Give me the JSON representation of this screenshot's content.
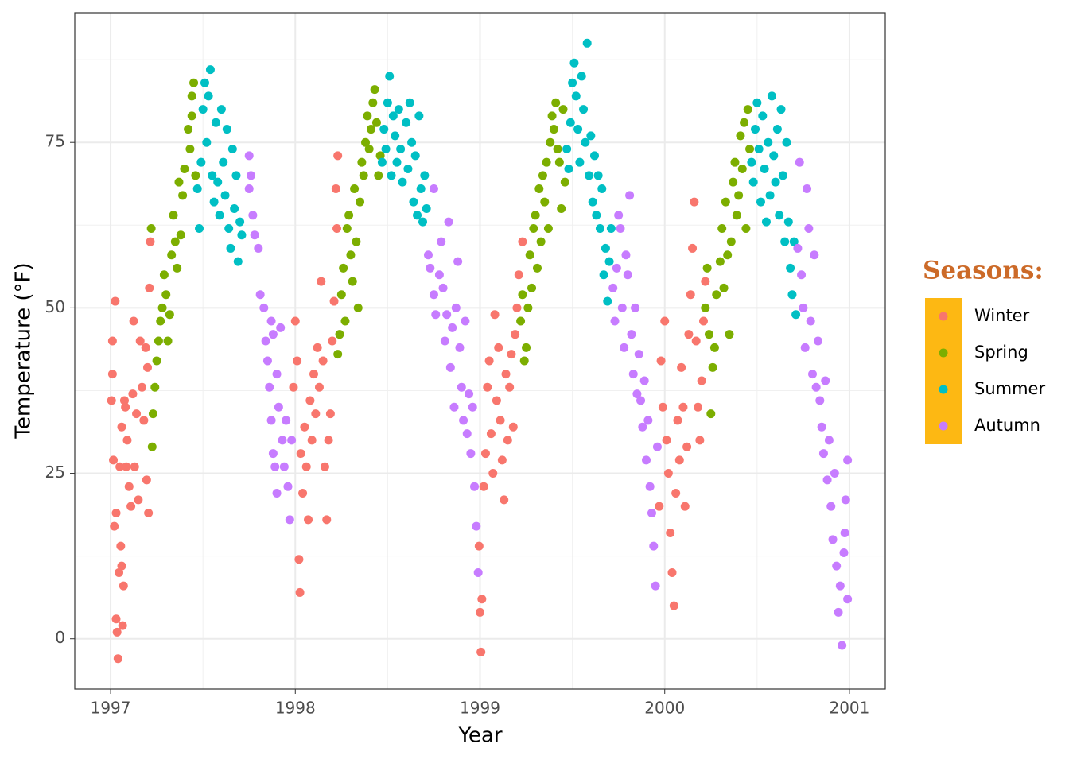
{
  "chart_data": {
    "type": "scatter",
    "x_label": "Year",
    "y_label": "Temperature (°F)",
    "xlim": [
      1996.806,
      2001.194
    ],
    "ylim": [
      -7.6,
      94.6
    ],
    "xticks": [
      1997,
      1998,
      1999,
      2000,
      2001
    ],
    "yticks": [
      0,
      25,
      50,
      75
    ],
    "xminorticks": [
      1997.5,
      1998.5,
      1999.5,
      2000.5
    ],
    "yminorticks": [
      12.5,
      37.5,
      62.5,
      87.5
    ],
    "grid": true,
    "legend": "right",
    "legend_title": "Seasons:",
    "legend_key_fill": "#FDB813",
    "series": [
      {
        "name": "Winter",
        "color": "#F8766D",
        "x": [
          1997.005,
          1997.01,
          1997.01,
          1997.015,
          1997.02,
          1997.025,
          1997.03,
          1997.03,
          1997.035,
          1997.04,
          1997.045,
          1997.05,
          1997.055,
          1997.06,
          1997.06,
          1997.065,
          1997.07,
          1997.075,
          1997.08,
          1997.085,
          1997.09,
          1997.1,
          1997.11,
          1997.12,
          1997.125,
          1997.13,
          1997.14,
          1997.15,
          1997.16,
          1997.17,
          1997.18,
          1997.19,
          1997.2,
          1997.21,
          1997.215,
          1997.205,
          1997.195,
          1997.99,
          1998.0,
          1998.01,
          1998.02,
          1998.025,
          1998.03,
          1998.04,
          1998.05,
          1998.06,
          1998.07,
          1998.08,
          1998.09,
          1998.1,
          1998.11,
          1998.12,
          1998.13,
          1998.14,
          1998.15,
          1998.16,
          1998.17,
          1998.18,
          1998.19,
          1998.2,
          1998.21,
          1998.22,
          1998.23,
          1998.225,
          1998.995,
          1999.0,
          1999.005,
          1999.01,
          1999.02,
          1999.03,
          1999.04,
          1999.05,
          1999.06,
          1999.07,
          1999.08,
          1999.09,
          1999.1,
          1999.11,
          1999.12,
          1999.13,
          1999.14,
          1999.15,
          1999.16,
          1999.17,
          1999.18,
          1999.19,
          1999.2,
          1999.21,
          1999.23,
          1999.97,
          1999.98,
          1999.99,
          2000.0,
          2000.01,
          2000.02,
          2000.03,
          2000.04,
          2000.05,
          2000.06,
          2000.07,
          2000.08,
          2000.09,
          2000.1,
          2000.11,
          2000.12,
          2000.13,
          2000.14,
          2000.15,
          2000.16,
          2000.17,
          2000.18,
          2000.19,
          2000.2,
          2000.21,
          2000.22
        ],
        "values": [
          36,
          45,
          40,
          27,
          17,
          51,
          19,
          3,
          1,
          -3,
          10,
          26,
          14,
          32,
          11,
          2,
          8,
          36,
          35,
          26,
          30,
          23,
          20,
          37,
          48,
          26,
          34,
          21,
          45,
          38,
          33,
          44,
          41,
          53,
          60,
          19,
          24,
          38,
          48,
          42,
          12,
          7,
          28,
          22,
          32,
          26,
          18,
          36,
          30,
          40,
          34,
          44,
          38,
          54,
          42,
          26,
          18,
          30,
          34,
          45,
          51,
          68,
          73,
          62,
          14,
          4,
          -2,
          6,
          23,
          28,
          38,
          42,
          31,
          25,
          49,
          36,
          44,
          33,
          27,
          21,
          40,
          30,
          38,
          43,
          32,
          46,
          50,
          55,
          60,
          20,
          42,
          35,
          48,
          30,
          25,
          16,
          10,
          5,
          22,
          33,
          27,
          41,
          35,
          20,
          29,
          46,
          52,
          59,
          66,
          45,
          35,
          30,
          39,
          48,
          54
        ]
      },
      {
        "name": "Spring",
        "color": "#7CAE00",
        "x": [
          1997.22,
          1997.225,
          1997.23,
          1997.24,
          1997.25,
          1997.26,
          1997.27,
          1997.28,
          1997.29,
          1997.3,
          1997.31,
          1997.32,
          1997.33,
          1997.34,
          1997.35,
          1997.36,
          1997.37,
          1997.38,
          1997.39,
          1997.4,
          1997.42,
          1997.43,
          1997.44,
          1997.45,
          1997.46,
          1997.44,
          1998.23,
          1998.24,
          1998.25,
          1998.26,
          1998.27,
          1998.28,
          1998.29,
          1998.3,
          1998.31,
          1998.32,
          1998.33,
          1998.34,
          1998.35,
          1998.36,
          1998.37,
          1998.38,
          1998.39,
          1998.4,
          1998.41,
          1998.42,
          1998.43,
          1998.44,
          1998.45,
          1998.46,
          1999.22,
          1999.23,
          1999.24,
          1999.25,
          1999.26,
          1999.27,
          1999.28,
          1999.29,
          1999.3,
          1999.31,
          1999.32,
          1999.33,
          1999.34,
          1999.35,
          1999.36,
          1999.37,
          1999.38,
          1999.39,
          1999.4,
          1999.41,
          1999.42,
          1999.43,
          1999.44,
          1999.45,
          1999.46,
          2000.22,
          2000.23,
          2000.24,
          2000.25,
          2000.26,
          2000.27,
          2000.28,
          2000.3,
          2000.31,
          2000.32,
          2000.33,
          2000.34,
          2000.35,
          2000.36,
          2000.37,
          2000.38,
          2000.39,
          2000.4,
          2000.41,
          2000.42,
          2000.43,
          2000.44,
          2000.45,
          2000.46
        ],
        "values": [
          62,
          29,
          34,
          38,
          42,
          45,
          48,
          50,
          55,
          52,
          45,
          49,
          58,
          64,
          60,
          56,
          69,
          61,
          67,
          71,
          77,
          74,
          82,
          84,
          70,
          79,
          43,
          46,
          52,
          56,
          48,
          62,
          64,
          58,
          54,
          68,
          60,
          50,
          66,
          72,
          70,
          75,
          79,
          74,
          77,
          81,
          83,
          78,
          70,
          73,
          48,
          52,
          42,
          44,
          50,
          58,
          53,
          62,
          64,
          56,
          68,
          60,
          70,
          66,
          72,
          62,
          75,
          79,
          77,
          81,
          74,
          72,
          65,
          80,
          69,
          50,
          56,
          46,
          34,
          41,
          44,
          52,
          57,
          62,
          53,
          66,
          58,
          46,
          60,
          69,
          72,
          64,
          67,
          76,
          71,
          78,
          62,
          80,
          74
        ]
      },
      {
        "name": "Summer",
        "color": "#00BFC4",
        "x": [
          1997.47,
          1997.48,
          1997.49,
          1997.5,
          1997.51,
          1997.52,
          1997.53,
          1997.54,
          1997.55,
          1997.56,
          1997.57,
          1997.58,
          1997.59,
          1997.6,
          1997.61,
          1997.62,
          1997.63,
          1997.64,
          1997.65,
          1997.66,
          1997.67,
          1997.68,
          1997.69,
          1997.7,
          1997.71,
          1998.47,
          1998.48,
          1998.49,
          1998.5,
          1998.51,
          1998.52,
          1998.53,
          1998.54,
          1998.55,
          1998.56,
          1998.57,
          1998.58,
          1998.6,
          1998.61,
          1998.62,
          1998.63,
          1998.64,
          1998.65,
          1998.66,
          1998.67,
          1998.68,
          1998.69,
          1998.7,
          1998.71,
          1999.47,
          1999.48,
          1999.49,
          1999.5,
          1999.51,
          1999.52,
          1999.53,
          1999.54,
          1999.55,
          1999.56,
          1999.57,
          1999.58,
          1999.59,
          1999.6,
          1999.61,
          1999.62,
          1999.63,
          1999.64,
          1999.65,
          1999.66,
          1999.67,
          1999.68,
          1999.69,
          1999.7,
          1999.71,
          2000.47,
          2000.48,
          2000.49,
          2000.5,
          2000.51,
          2000.52,
          2000.53,
          2000.54,
          2000.55,
          2000.56,
          2000.57,
          2000.58,
          2000.59,
          2000.6,
          2000.61,
          2000.62,
          2000.63,
          2000.64,
          2000.65,
          2000.66,
          2000.67,
          2000.68,
          2000.69,
          2000.7,
          2000.71
        ],
        "values": [
          68,
          62,
          72,
          80,
          84,
          75,
          82,
          86,
          70,
          66,
          78,
          69,
          64,
          80,
          72,
          67,
          77,
          62,
          59,
          74,
          65,
          70,
          57,
          63,
          61,
          72,
          77,
          74,
          81,
          85,
          70,
          79,
          76,
          72,
          80,
          74,
          69,
          78,
          71,
          81,
          75,
          66,
          73,
          64,
          79,
          68,
          63,
          70,
          65,
          74,
          71,
          78,
          84,
          87,
          82,
          77,
          72,
          85,
          80,
          75,
          90,
          70,
          76,
          66,
          73,
          64,
          70,
          62,
          68,
          55,
          59,
          51,
          57,
          62,
          72,
          69,
          77,
          81,
          74,
          66,
          79,
          71,
          63,
          75,
          67,
          82,
          73,
          69,
          77,
          64,
          80,
          70,
          60,
          75,
          63,
          56,
          52,
          60,
          49
        ]
      },
      {
        "name": "Autumn",
        "color": "#C77CFF",
        "x": [
          1997.75,
          1997.76,
          1997.77,
          1997.75,
          1997.78,
          1997.8,
          1997.81,
          1997.83,
          1997.84,
          1997.85,
          1997.86,
          1997.87,
          1997.88,
          1997.88,
          1997.89,
          1997.9,
          1997.91,
          1997.92,
          1997.93,
          1997.94,
          1997.95,
          1997.96,
          1997.97,
          1997.98,
          1997.9,
          1997.87,
          1998.72,
          1998.73,
          1998.75,
          1998.75,
          1998.76,
          1998.78,
          1998.79,
          1998.8,
          1998.81,
          1998.82,
          1998.83,
          1998.84,
          1998.85,
          1998.86,
          1998.87,
          1998.88,
          1998.89,
          1998.9,
          1998.91,
          1998.92,
          1998.93,
          1998.94,
          1998.95,
          1998.96,
          1998.97,
          1998.98,
          1998.99,
          1999.72,
          1999.73,
          1999.74,
          1999.75,
          1999.76,
          1999.77,
          1999.78,
          1999.79,
          1999.8,
          1999.81,
          1999.82,
          1999.83,
          1999.84,
          1999.85,
          1999.86,
          1999.87,
          1999.88,
          1999.89,
          1999.9,
          1999.91,
          1999.92,
          1999.93,
          1999.94,
          1999.95,
          1999.96,
          2000.72,
          2000.73,
          2000.74,
          2000.75,
          2000.76,
          2000.77,
          2000.78,
          2000.79,
          2000.8,
          2000.81,
          2000.82,
          2000.83,
          2000.84,
          2000.85,
          2000.86,
          2000.87,
          2000.88,
          2000.89,
          2000.9,
          2000.91,
          2000.92,
          2000.93,
          2000.94,
          2000.95,
          2000.96,
          2000.97,
          2000.98,
          2000.99,
          2000.99,
          2000.975
        ],
        "values": [
          73,
          70,
          64,
          68,
          61,
          59,
          52,
          50,
          45,
          42,
          38,
          33,
          28,
          46,
          26,
          22,
          35,
          47,
          30,
          26,
          33,
          23,
          18,
          30,
          40,
          48,
          58,
          56,
          68,
          52,
          49,
          55,
          60,
          53,
          45,
          49,
          63,
          41,
          47,
          35,
          50,
          57,
          44,
          38,
          33,
          48,
          31,
          37,
          28,
          35,
          23,
          17,
          10,
          53,
          48,
          56,
          64,
          62,
          50,
          44,
          58,
          55,
          67,
          46,
          40,
          50,
          37,
          43,
          36,
          32,
          39,
          27,
          33,
          23,
          19,
          14,
          8,
          29,
          59,
          72,
          55,
          50,
          44,
          68,
          62,
          48,
          40,
          58,
          38,
          45,
          36,
          32,
          28,
          39,
          24,
          30,
          20,
          15,
          25,
          11,
          4,
          8,
          -1,
          13,
          21,
          27,
          6,
          16
        ]
      }
    ]
  }
}
